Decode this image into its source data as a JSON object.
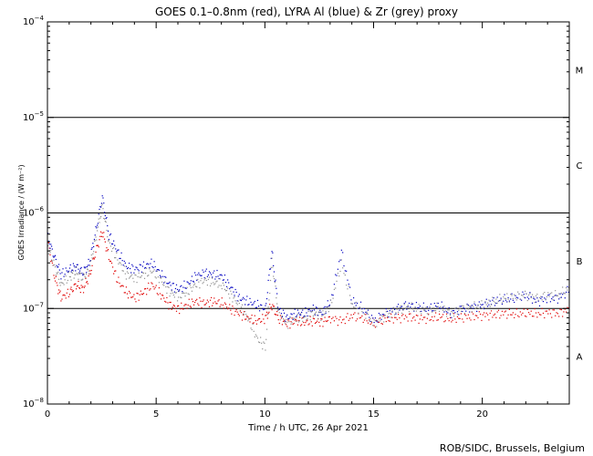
{
  "chart_data": {
    "type": "scatter",
    "title": "GOES 0.1–0.8nm (red), LYRA Al (blue) & Zr (grey) proxy",
    "xlabel": "Time / h UTC, 26 Apr 2021",
    "ylabel": "GOES Irradiance / (W m⁻²)",
    "xlim": [
      0,
      24
    ],
    "ylim": [
      1e-08,
      0.0001
    ],
    "yscale": "log",
    "x_ticks": [
      0,
      5,
      10,
      15,
      20
    ],
    "x_tick_labels": [
      "0",
      "5",
      "10",
      "15",
      "20"
    ],
    "y_ticks": [
      {
        "value": 1e-08,
        "mant": "10",
        "exp": "−8"
      },
      {
        "value": 1e-07,
        "mant": "10",
        "exp": "−7"
      },
      {
        "value": 1e-06,
        "mant": "10",
        "exp": "−6"
      },
      {
        "value": 1e-05,
        "mant": "10",
        "exp": "−5"
      },
      {
        "value": 0.0001,
        "mant": "10",
        "exp": "−4"
      }
    ],
    "threshold_lines": [
      1e-07,
      1e-06,
      1e-05
    ],
    "flare_classes": [
      {
        "label": "A",
        "value": 3.16e-08
      },
      {
        "label": "B",
        "value": 3.16e-07
      },
      {
        "label": "C",
        "value": 3.16e-06
      },
      {
        "label": "M",
        "value": 3.16e-05
      }
    ],
    "series": [
      {
        "name": "GOES 0.1-0.8nm",
        "color": "#e00000",
        "x": [
          0,
          0.3,
          0.6,
          1.0,
          1.3,
          1.6,
          1.9,
          2.2,
          2.5,
          2.8,
          3.2,
          3.6,
          4.0,
          4.4,
          4.8,
          5.2,
          5.6,
          6.0,
          6.4,
          6.8,
          7.2,
          7.6,
          8.0,
          8.4,
          8.8,
          9.2,
          9.6,
          10.0,
          10.3,
          10.6,
          11.0,
          11.4,
          11.8,
          12.2,
          12.6,
          13.0,
          13.5,
          14.0,
          14.5,
          15.0,
          15.5,
          16.0,
          16.5,
          17.0,
          17.5,
          18.0,
          18.5,
          19.0,
          19.5,
          20.0,
          20.5,
          21.0,
          21.5,
          22.0,
          22.5,
          23.0,
          23.5,
          24.0
        ],
        "values": [
          5e-07,
          2.2e-07,
          1.3e-07,
          1.5e-07,
          1.8e-07,
          1.6e-07,
          2.2e-07,
          4e-07,
          6.5e-07,
          3.5e-07,
          2e-07,
          1.5e-07,
          1.3e-07,
          1.5e-07,
          1.8e-07,
          1.4e-07,
          1.1e-07,
          1e-07,
          1.1e-07,
          1.2e-07,
          1.15e-07,
          1.2e-07,
          1.15e-07,
          1e-07,
          9e-08,
          8e-08,
          7.5e-08,
          8e-08,
          1.1e-07,
          8e-08,
          7e-08,
          7.5e-08,
          7.2e-08,
          7.5e-08,
          7.3e-08,
          8e-08,
          7.5e-08,
          8.5e-08,
          8e-08,
          7e-08,
          7.8e-08,
          8e-08,
          8.3e-08,
          8e-08,
          7.9e-08,
          8.3e-08,
          7.8e-08,
          8.1e-08,
          8.4e-08,
          8.6e-08,
          8.7e-08,
          9e-08,
          8.8e-08,
          9.1e-08,
          8.9e-08,
          9.2e-08,
          9e-08,
          1e-07
        ]
      },
      {
        "name": "LYRA Al proxy",
        "color": "#0000c0",
        "x": [
          0,
          0.3,
          0.6,
          1.0,
          1.3,
          1.6,
          1.9,
          2.2,
          2.5,
          2.8,
          3.2,
          3.6,
          4.0,
          4.4,
          4.8,
          5.2,
          5.6,
          6.0,
          6.4,
          6.8,
          7.2,
          7.6,
          8.0,
          8.4,
          8.8,
          9.2,
          9.6,
          10.0,
          10.3,
          10.6,
          11.0,
          11.4,
          11.8,
          12.2,
          12.6,
          13.0,
          13.5,
          14.0,
          14.5,
          15.0,
          15.5,
          16.0,
          16.5,
          17.0,
          17.5,
          18.0,
          18.5,
          19.0,
          19.5,
          20.0,
          20.5,
          21.0,
          21.5,
          22.0,
          22.5,
          23.0,
          23.5,
          24.0
        ],
        "values": [
          5.5e-07,
          3.5e-07,
          2.3e-07,
          2.6e-07,
          2.8e-07,
          2.4e-07,
          3e-07,
          6.5e-07,
          1.5e-06,
          6e-07,
          4e-07,
          2.8e-07,
          2.6e-07,
          2.8e-07,
          3e-07,
          2.3e-07,
          1.8e-07,
          1.6e-07,
          1.8e-07,
          2.2e-07,
          2.4e-07,
          2.3e-07,
          2.2e-07,
          1.7e-07,
          1.3e-07,
          1.2e-07,
          1.1e-07,
          1e-07,
          4e-07,
          1e-07,
          8e-08,
          9e-08,
          9e-08,
          1e-07,
          9e-08,
          1.2e-07,
          4e-07,
          1.2e-07,
          1e-07,
          7.5e-08,
          9e-08,
          1e-07,
          1.1e-07,
          1.05e-07,
          1e-07,
          1.1e-07,
          9e-08,
          1e-07,
          1.05e-07,
          1.1e-07,
          1.2e-07,
          1.25e-07,
          1.3e-07,
          1.4e-07,
          1.2e-07,
          1.3e-07,
          1.3e-07,
          1.6e-07
        ]
      },
      {
        "name": "LYRA Zr proxy",
        "color": "#909090",
        "x": [
          0,
          0.3,
          0.6,
          1.0,
          1.3,
          1.6,
          1.9,
          2.2,
          2.5,
          2.8,
          3.2,
          3.6,
          4.0,
          4.4,
          4.8,
          5.2,
          5.6,
          6.0,
          6.4,
          6.8,
          7.2,
          7.6,
          8.0,
          8.4,
          8.8,
          9.2,
          9.6,
          10.0,
          10.3,
          10.6,
          11.0,
          11.4,
          11.8,
          12.2,
          12.6,
          13.0,
          13.5,
          14.0,
          14.5,
          15.0,
          15.5,
          16.0,
          16.5,
          17.0,
          17.5,
          18.0,
          18.5,
          19.0,
          19.5,
          20.0,
          20.5,
          21.0,
          21.5,
          22.0,
          22.5,
          23.0,
          23.5,
          24.0
        ],
        "values": [
          4.5e-07,
          2.8e-07,
          1.8e-07,
          2.2e-07,
          2.4e-07,
          2.1e-07,
          2.6e-07,
          5.5e-07,
          1.2e-06,
          5e-07,
          3.3e-07,
          2.3e-07,
          2.1e-07,
          2.3e-07,
          2.5e-07,
          2e-07,
          1.5e-07,
          1.35e-07,
          1.5e-07,
          1.8e-07,
          2e-07,
          1.9e-07,
          1.8e-07,
          1.4e-07,
          1.1e-07,
          8e-08,
          5e-08,
          4e-08,
          3.2e-07,
          9e-08,
          7e-08,
          8e-08,
          8e-08,
          9e-08,
          8.5e-08,
          1.1e-07,
          3e-07,
          1.1e-07,
          9.5e-08,
          7e-08,
          8.5e-08,
          9.5e-08,
          1.05e-07,
          1e-07,
          9.5e-08,
          1.05e-07,
          9e-08,
          1e-07,
          1.05e-07,
          1.1e-07,
          1.2e-07,
          1.3e-07,
          1.35e-07,
          1.4e-07,
          1.3e-07,
          1.4e-07,
          1.4e-07,
          1.7e-07
        ]
      }
    ],
    "credit": "ROB/SIDC, Brussels, Belgium"
  }
}
